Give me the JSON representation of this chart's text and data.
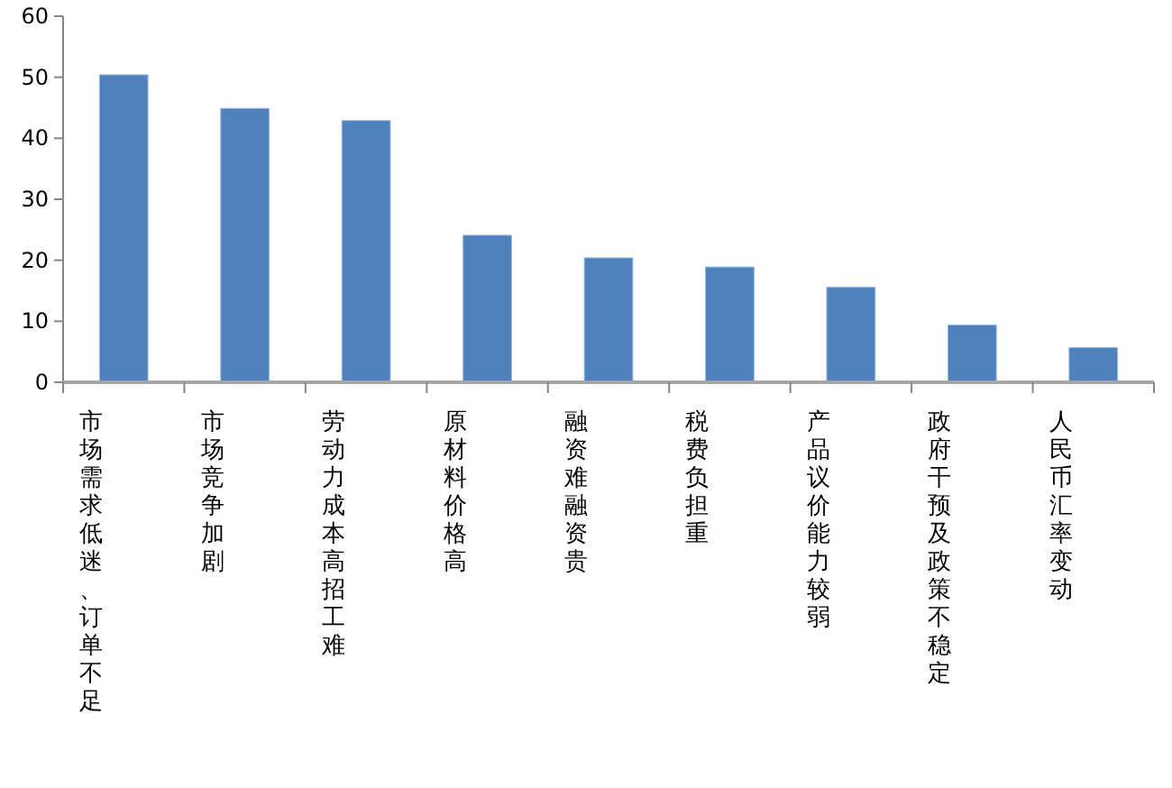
{
  "chart_data": {
    "type": "bar",
    "categories": [
      "市场需求低迷、订单不足",
      "市场竞争加剧",
      "劳动力成本高招工难",
      "原材料价格高",
      "融资难融资贵",
      "税费负担重",
      "产品议价能力较弱",
      "政府干预及政策不稳定",
      "人民币汇率变动"
    ],
    "values": [
      50.4,
      44.9,
      42.9,
      24.1,
      20.4,
      18.9,
      15.6,
      9.4,
      5.7
    ],
    "color": "#4f81bd",
    "ylim": [
      0,
      60
    ],
    "yticks": [
      0,
      10,
      20,
      30,
      40,
      50,
      60
    ],
    "grid": false
  }
}
